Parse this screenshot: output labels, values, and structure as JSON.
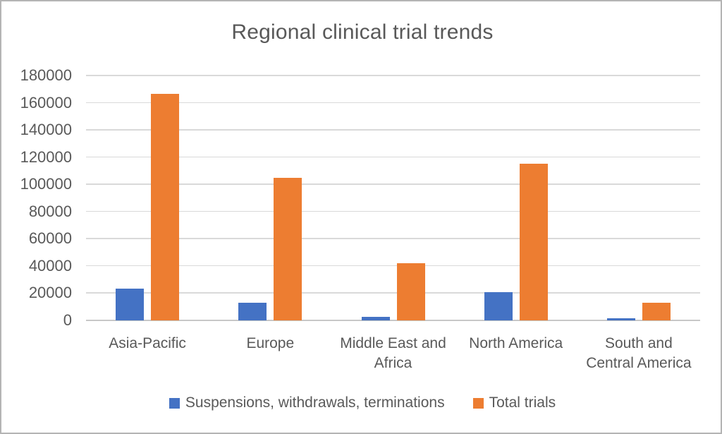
{
  "window": {
    "background": "#ffffff",
    "border_color": "#b4b4b4"
  },
  "chart_data": {
    "type": "bar",
    "title": "Regional clinical trial trends",
    "categories": [
      "Asia-Pacific",
      "Europe",
      "Middle East and Africa",
      "North America",
      "South and Central America"
    ],
    "category_display": [
      "Asia-Pacific",
      "Europe",
      "Middle East and\nAfrica",
      "North America",
      "South and\nCentral America"
    ],
    "series": [
      {
        "name": "Suspensions, withdrawals, terminations",
        "color": "#4472C4",
        "values": [
          23500,
          13000,
          2800,
          20500,
          1800
        ]
      },
      {
        "name": "Total trials",
        "color": "#ED7D31",
        "values": [
          166500,
          105000,
          42000,
          115000,
          13000
        ]
      }
    ],
    "xlabel": "",
    "ylabel": "",
    "ylim": [
      0,
      180000
    ],
    "ytick_interval": 20000,
    "ytick_labels": [
      "180000",
      "160000",
      "140000",
      "120000",
      "100000",
      "80000",
      "60000",
      "40000",
      "20000",
      "0"
    ],
    "grid": true,
    "legend_position": "bottom",
    "gridline_color": "#d9d9d9",
    "axis_line_color": "#c7c7c7",
    "text_color": "#595959"
  }
}
